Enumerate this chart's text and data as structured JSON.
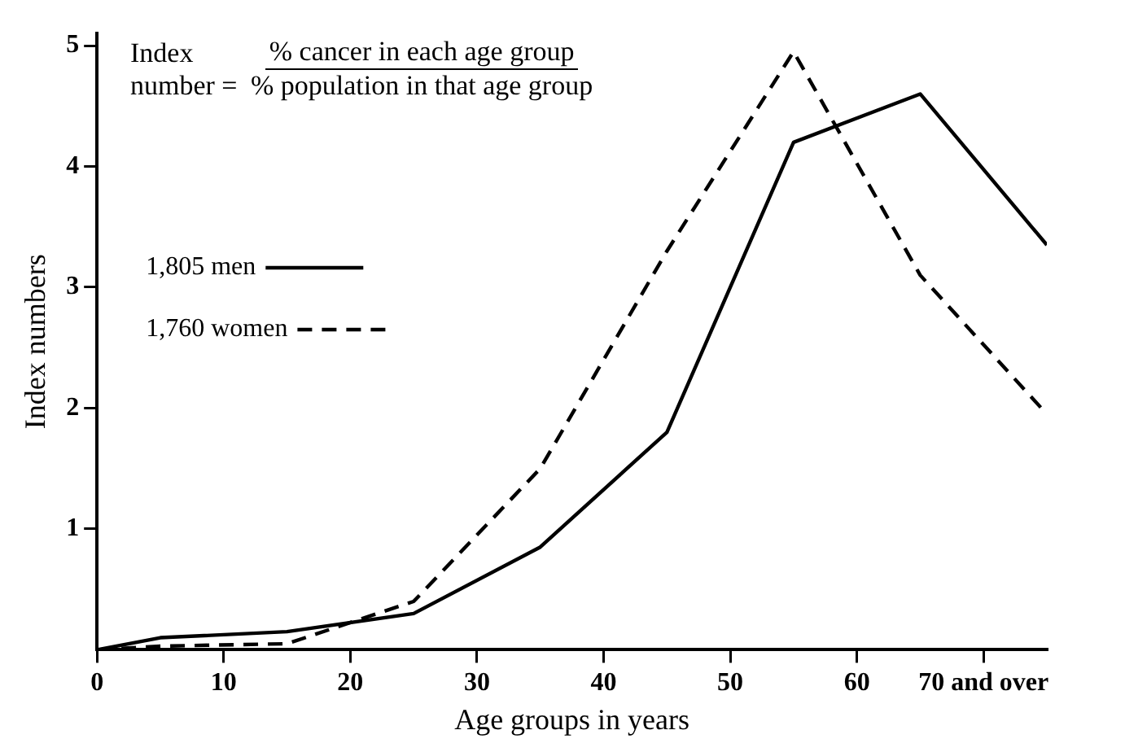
{
  "chart_data": {
    "type": "line",
    "xlabel": "Age groups in years",
    "ylabel": "Index numbers",
    "annotations": [
      "Index number =",
      "% cancer in each age group",
      "% population in that age group"
    ],
    "series": [
      {
        "name": "1,805 men",
        "color": "#000000",
        "line_style": "solid",
        "x": [
          0,
          5,
          15,
          25,
          35,
          45,
          55,
          65,
          75
        ],
        "values": [
          0,
          0.1,
          0.15,
          0.3,
          0.85,
          1.8,
          4.2,
          4.6,
          3.35
        ]
      },
      {
        "name": "1,760 women",
        "color": "#000000",
        "line_style": "dashed",
        "x": [
          0,
          5,
          15,
          25,
          35,
          45,
          55,
          65,
          75
        ],
        "values": [
          0,
          0.03,
          0.05,
          0.4,
          1.5,
          3.3,
          4.95,
          3.1,
          1.95
        ]
      }
    ],
    "xlim": [
      0,
      75
    ],
    "xticks": [
      0,
      10,
      20,
      30,
      40,
      50,
      60,
      {
        "value": 70,
        "label": "70 and over"
      }
    ],
    "ylim": [
      0,
      5.1
    ],
    "yticks": [
      1,
      2,
      3,
      4,
      5
    ],
    "grid": false,
    "legend": "left",
    "marker": "none"
  }
}
